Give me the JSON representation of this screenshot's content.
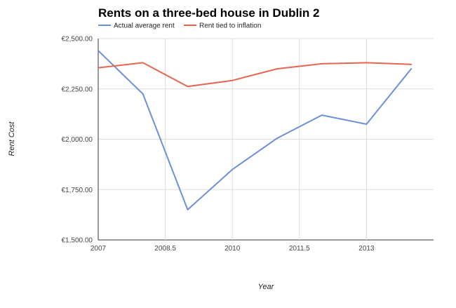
{
  "chart_data": {
    "type": "line",
    "title": "Rents on a three-bed house in Dublin 2",
    "xlabel": "Year",
    "ylabel": "Rent Cost",
    "xlim": [
      2007,
      2014.5
    ],
    "ylim": [
      1500,
      2500
    ],
    "x_ticks": [
      2007,
      2008.5,
      2010,
      2011.5,
      2013
    ],
    "x_tick_labels": [
      "2007",
      "2008.5",
      "2010",
      "2011.5",
      "2013"
    ],
    "y_ticks": [
      1500,
      1750,
      2000,
      2250,
      2500
    ],
    "y_tick_labels": [
      "€1,500.00",
      "€1,750.00",
      "€2,000.00",
      "€2,250.00",
      "€2,500.00"
    ],
    "grid": true,
    "legend_position": "top-left",
    "series": [
      {
        "name": "Actual average rent",
        "color": "#6d8fd9",
        "x": [
          2007,
          2008,
          2009,
          2010,
          2011,
          2012,
          2013,
          2014
        ],
        "y": [
          2440,
          2225,
          1650,
          1850,
          2005,
          2120,
          2075,
          2350
        ]
      },
      {
        "name": "Rent tied to inflation",
        "color": "#e8644e",
        "x": [
          2007,
          2008,
          2009,
          2010,
          2011,
          2012,
          2013,
          2014
        ],
        "y": [
          2355,
          2380,
          2262,
          2292,
          2350,
          2375,
          2380,
          2372
        ]
      }
    ]
  }
}
